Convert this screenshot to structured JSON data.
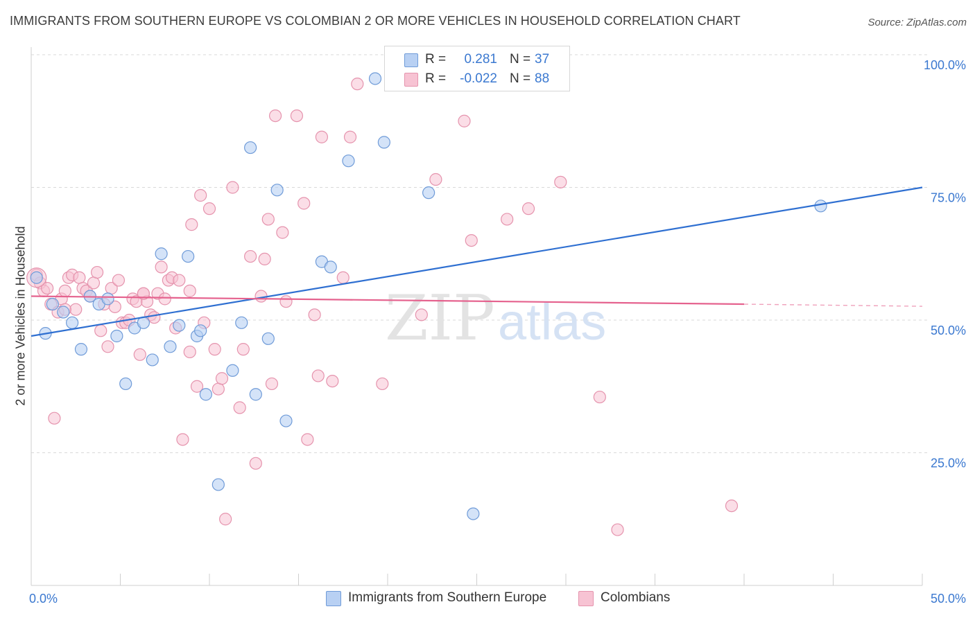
{
  "header": {
    "title": "IMMIGRANTS FROM SOUTHERN EUROPE VS COLOMBIAN 2 OR MORE VEHICLES IN HOUSEHOLD CORRELATION CHART",
    "source": "Source: ZipAtlas.com"
  },
  "watermark": {
    "zip": "ZIP",
    "atlas": "atlas"
  },
  "stats": {
    "blue": {
      "r_label": "R =",
      "r_value": "0.281",
      "n_label": "N =",
      "n_value": "37"
    },
    "pink": {
      "r_label": "R =",
      "r_value": "-0.022",
      "n_label": "N =",
      "n_value": "88"
    }
  },
  "legend": {
    "blue_label": "Immigrants from Southern Europe",
    "pink_label": "Colombians"
  },
  "colors": {
    "blue_fill": "#b8d0f3",
    "blue_stroke": "#6f9bd8",
    "blue_line": "#2e6fd1",
    "pink_fill": "#f7c3d3",
    "pink_stroke": "#e593ad",
    "pink_line": "#e5628e",
    "tick_text": "#3a78d0",
    "grid": "#d9d9d9"
  },
  "chart_data": {
    "type": "scatter",
    "title": "IMMIGRANTS FROM SOUTHERN EUROPE VS COLOMBIAN 2 OR MORE VEHICLES IN HOUSEHOLD CORRELATION CHART",
    "xlabel": "",
    "ylabel": "2 or more Vehicles in Household",
    "xlim": [
      0,
      50
    ],
    "ylim": [
      0,
      105
    ],
    "x_tick_labels": [
      "0.0%",
      "50.0%"
    ],
    "y_ticks": [
      25,
      50,
      75,
      100
    ],
    "y_tick_labels": [
      "25.0%",
      "50.0%",
      "75.0%",
      "100.0%"
    ],
    "grid": true,
    "series": [
      {
        "name": "Immigrants from Southern Europe",
        "color": "#b8d0f3",
        "points": [
          [
            0.3,
            58
          ],
          [
            0.8,
            47.5
          ],
          [
            1.2,
            53
          ],
          [
            1.8,
            51.5
          ],
          [
            2.3,
            49.5
          ],
          [
            2.8,
            44.5
          ],
          [
            3.3,
            54.5
          ],
          [
            3.8,
            53
          ],
          [
            4.3,
            54
          ],
          [
            4.8,
            47
          ],
          [
            5.3,
            38
          ],
          [
            5.8,
            48.5
          ],
          [
            6.3,
            49.5
          ],
          [
            6.8,
            42.5
          ],
          [
            7.3,
            62.5
          ],
          [
            7.8,
            45
          ],
          [
            8.3,
            49
          ],
          [
            8.8,
            62
          ],
          [
            9.3,
            47
          ],
          [
            9.5,
            48
          ],
          [
            9.8,
            36
          ],
          [
            10.5,
            19
          ],
          [
            11.3,
            40.5
          ],
          [
            11.8,
            49.5
          ],
          [
            12.3,
            82.5
          ],
          [
            12.6,
            36
          ],
          [
            13.3,
            46.5
          ],
          [
            13.8,
            74.5
          ],
          [
            14.3,
            31
          ],
          [
            16.3,
            61
          ],
          [
            16.8,
            60
          ],
          [
            17.8,
            80
          ],
          [
            19.3,
            95.5
          ],
          [
            19.8,
            83.5
          ],
          [
            22.3,
            74
          ],
          [
            24.8,
            13.5
          ],
          [
            44.3,
            71.5
          ]
        ]
      },
      {
        "name": "Colombians",
        "color": "#f7c3d3",
        "points": [
          [
            0.3,
            58.5
          ],
          [
            0.5,
            57
          ],
          [
            0.7,
            55.5
          ],
          [
            0.9,
            56
          ],
          [
            1.1,
            53
          ],
          [
            1.3,
            31.5
          ],
          [
            1.5,
            51.5
          ],
          [
            1.7,
            54
          ],
          [
            1.9,
            55.5
          ],
          [
            2.1,
            58
          ],
          [
            2.3,
            58.5
          ],
          [
            2.5,
            52
          ],
          [
            2.7,
            58
          ],
          [
            2.9,
            56
          ],
          [
            3.1,
            55.5
          ],
          [
            3.3,
            54.5
          ],
          [
            3.5,
            57
          ],
          [
            3.7,
            59
          ],
          [
            3.9,
            48
          ],
          [
            4.1,
            53
          ],
          [
            4.3,
            45
          ],
          [
            4.5,
            56
          ],
          [
            4.7,
            52.5
          ],
          [
            4.9,
            57.5
          ],
          [
            5.1,
            49.5
          ],
          [
            5.3,
            49.5
          ],
          [
            5.5,
            50
          ],
          [
            5.7,
            54
          ],
          [
            5.9,
            53.5
          ],
          [
            6.1,
            43.5
          ],
          [
            6.3,
            55
          ],
          [
            6.5,
            53.5
          ],
          [
            6.7,
            51
          ],
          [
            6.9,
            50.5
          ],
          [
            7.1,
            55
          ],
          [
            7.3,
            60
          ],
          [
            7.5,
            54
          ],
          [
            7.7,
            57.5
          ],
          [
            7.9,
            58
          ],
          [
            8.1,
            48.5
          ],
          [
            8.3,
            57.5
          ],
          [
            8.5,
            27.5
          ],
          [
            8.9,
            44
          ],
          [
            9.0,
            68
          ],
          [
            9.3,
            37.5
          ],
          [
            9.5,
            73.5
          ],
          [
            9.7,
            49.5
          ],
          [
            10.0,
            71
          ],
          [
            10.3,
            44.5
          ],
          [
            10.5,
            37
          ],
          [
            10.7,
            39
          ],
          [
            10.9,
            12.5
          ],
          [
            11.3,
            75
          ],
          [
            11.7,
            33.5
          ],
          [
            11.9,
            44.5
          ],
          [
            12.3,
            62
          ],
          [
            12.6,
            23
          ],
          [
            12.9,
            54.5
          ],
          [
            13.1,
            61.5
          ],
          [
            13.3,
            69
          ],
          [
            13.5,
            38
          ],
          [
            13.7,
            88.5
          ],
          [
            14.1,
            66.5
          ],
          [
            14.3,
            53.5
          ],
          [
            14.9,
            88.5
          ],
          [
            15.3,
            72
          ],
          [
            15.5,
            27.5
          ],
          [
            15.9,
            51
          ],
          [
            16.1,
            39.5
          ],
          [
            16.3,
            84.5
          ],
          [
            16.9,
            38.5
          ],
          [
            17.5,
            58
          ],
          [
            17.9,
            84.5
          ],
          [
            18.3,
            94.5
          ],
          [
            19.7,
            38
          ],
          [
            21.9,
            51
          ],
          [
            22.7,
            76.5
          ],
          [
            24.3,
            87.5
          ],
          [
            24.7,
            65
          ],
          [
            26.7,
            69
          ],
          [
            27.9,
            71
          ],
          [
            29.7,
            76
          ],
          [
            31.9,
            35.5
          ],
          [
            32.9,
            10.5
          ],
          [
            39.3,
            15
          ],
          [
            1.9,
            52
          ],
          [
            6.3,
            55
          ],
          [
            8.9,
            55.5
          ]
        ]
      }
    ],
    "trendlines": [
      {
        "series": "Immigrants from Southern Europe",
        "x": [
          0,
          50
        ],
        "y": [
          47,
          75
        ]
      },
      {
        "series": "Colombians",
        "x": [
          0,
          40
        ],
        "y": [
          54.5,
          53
        ],
        "dashed_to": [
          50,
          52.6
        ]
      }
    ]
  }
}
